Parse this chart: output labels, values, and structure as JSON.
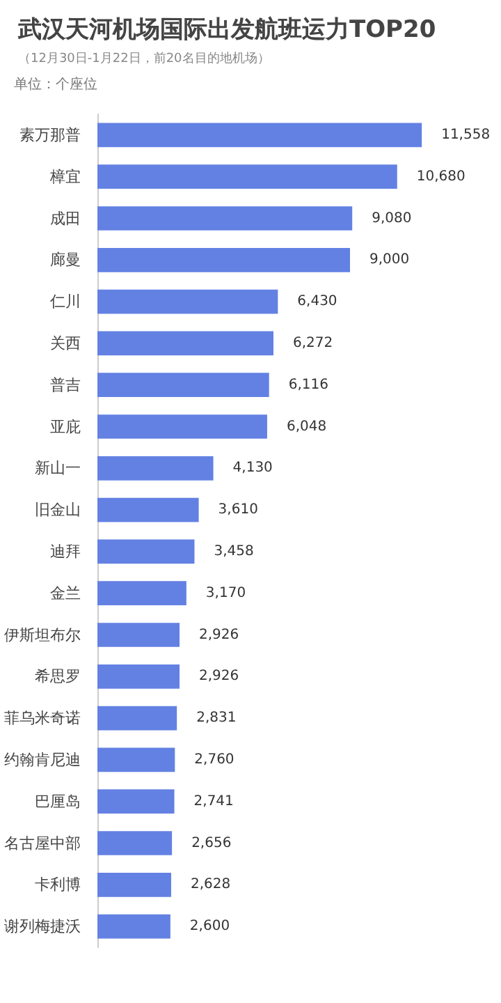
{
  "chart_data": {
    "type": "bar",
    "orientation": "horizontal",
    "title": "武汉天河机场国际出发航班运力TOP20",
    "subtitle": "（12月30日-1月22日，前20名目的地机场）",
    "annotations": [
      "单位：个座位"
    ],
    "categories": [
      "素万那普",
      "樟宜",
      "成田",
      "廊曼",
      "仁川",
      "关西",
      "普吉",
      "亚庇",
      "新山一",
      "旧金山",
      "迪拜",
      "金兰",
      "伊斯坦布尔",
      "希思罗",
      "菲乌米奇诺",
      "约翰肯尼迪",
      "巴厘岛",
      "名古屋中部",
      "卡利博",
      "谢列梅捷沃"
    ],
    "values": [
      11558,
      10680,
      9080,
      9000,
      6430,
      6272,
      6116,
      6048,
      4130,
      3610,
      3458,
      3170,
      2926,
      2926,
      2831,
      2760,
      2741,
      2656,
      2628,
      2600
    ],
    "value_labels": [
      "11,558",
      "10,680",
      "9,080",
      "9,000",
      "6,430",
      "6,272",
      "6,116",
      "6,048",
      "4,130",
      "3,610",
      "3,458",
      "3,170",
      "2,926",
      "2,926",
      "2,831",
      "2,760",
      "2,741",
      "2,656",
      "2,628",
      "2,600"
    ],
    "color": "#6381e3",
    "tick_labels": "y"
  }
}
